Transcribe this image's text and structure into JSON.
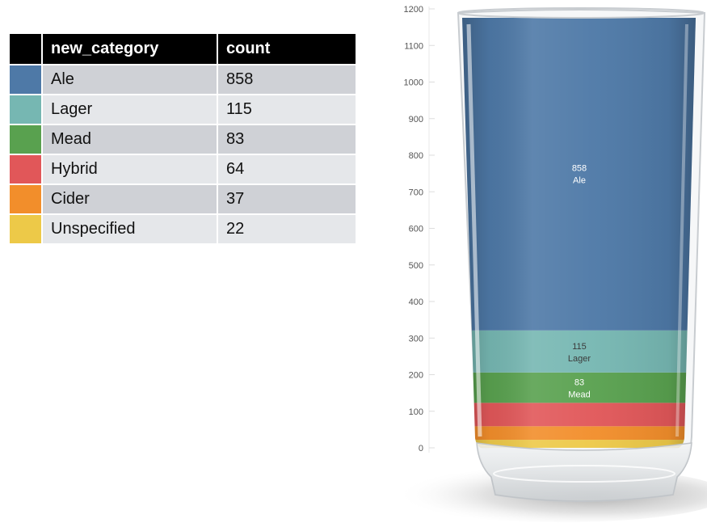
{
  "table": {
    "headers": [
      "new_category",
      "count"
    ],
    "rows": [
      {
        "category": "Ale",
        "count": "858",
        "color": "#4e79a7"
      },
      {
        "category": "Lager",
        "count": "115",
        "color": "#76b7b2"
      },
      {
        "category": "Mead",
        "count": "83",
        "color": "#59a14f"
      },
      {
        "category": "Hybrid",
        "count": "64",
        "color": "#e15759"
      },
      {
        "category": "Cider",
        "count": "37",
        "color": "#f28e2b"
      },
      {
        "category": "Unspecified",
        "count": "22",
        "color": "#edc948"
      }
    ]
  },
  "chart_data": {
    "type": "bar",
    "stacked": true,
    "categories": [
      "Ale",
      "Lager",
      "Mead",
      "Hybrid",
      "Cider",
      "Unspecified"
    ],
    "values": [
      858,
      115,
      83,
      64,
      37,
      22
    ],
    "colors": [
      "#4e79a7",
      "#76b7b2",
      "#59a14f",
      "#e15759",
      "#f28e2b",
      "#edc948"
    ],
    "stack_order": [
      "Unspecified",
      "Cider",
      "Hybrid",
      "Mead",
      "Lager",
      "Ale"
    ],
    "labeled_segments": [
      "Ale",
      "Lager",
      "Mead"
    ],
    "ylim": [
      0,
      1200
    ],
    "yticks": [
      0,
      100,
      200,
      300,
      400,
      500,
      600,
      700,
      800,
      900,
      1000,
      1100,
      1200
    ],
    "title": "",
    "xlabel": "",
    "ylabel": "",
    "grid": false,
    "legend": "table at top-left"
  }
}
